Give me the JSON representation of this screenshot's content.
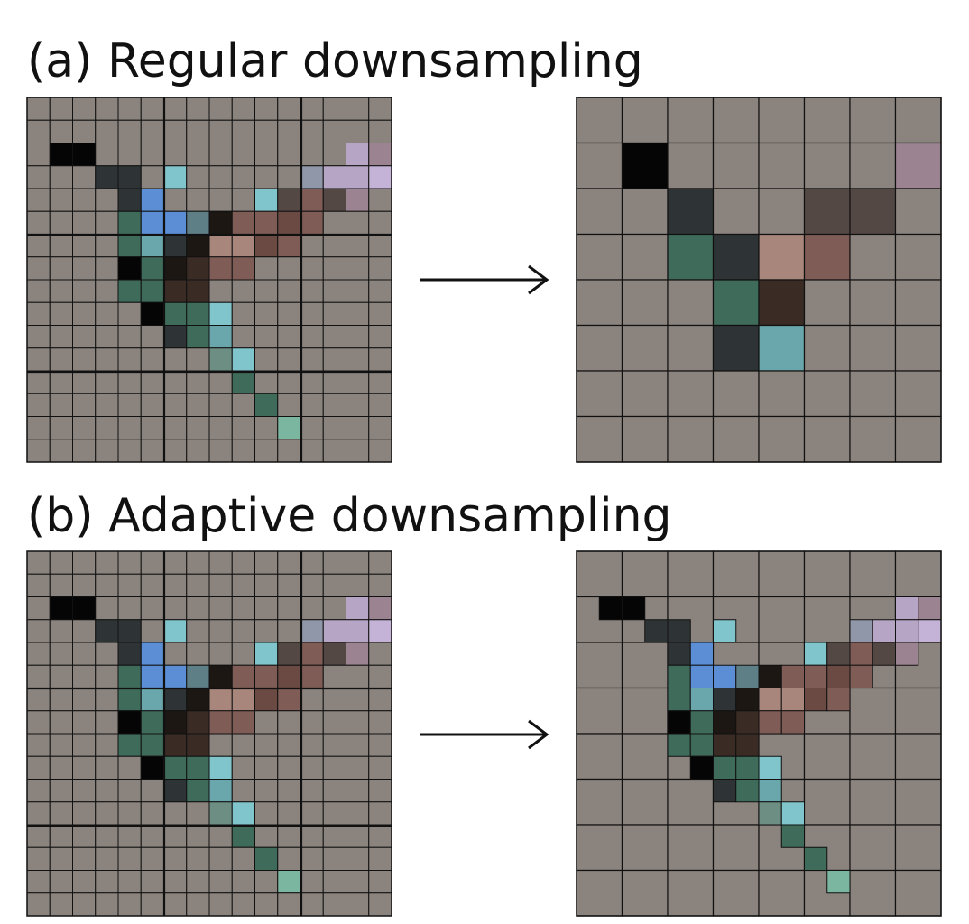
{
  "titles": {
    "regular": "(a) Regular downsampling",
    "adaptive": "(b) Adaptive downsampling"
  },
  "colors": {
    "background_cell": "#8a837e",
    "grid_line": "#111111",
    "arrow": "#111111"
  },
  "palette": {
    "K": "#050505",
    "D": "#2e3436",
    "B": "#5b8ed4",
    "C": "#80c5cb",
    "G": "#3f6b5a",
    "S": "#6aa7ac",
    "T": "#5f7f86",
    "Y": "#1c1712",
    "R": "#3a2b24",
    "P": "#a8867c",
    "M": "#7f5d56",
    "N": "#6b4a43",
    "E": "#544845",
    "L": "#c4b3d6",
    "V": "#b7a5c6",
    "O": "#9c8391",
    "Q": "#8f97a8",
    "H": "#7ab6a0",
    "W": "#6d8e82"
  },
  "diagram": {
    "fine_grid": {
      "rows": [
        "................",
        "................",
        ".KK...........VOL",
        "...DD.C.....QVVL.",
        "....DB....CEMEO..",
        "....GBBTYMMNM....",
        "....GSDYPPNM.....",
        "....KGYRMM.......",
        "....GGRR.........",
        ".....KGGC........",
        "......DGS........",
        "........WC.......",
        ".........G.......",
        "..........G......",
        "...........H.....",
        "................"
      ]
    },
    "regular_output": {
      "rows": [
        "........",
        ".K.....O",
        "..D..EE.",
        "..GDPM..",
        "...GR...",
        "...DS...",
        "........",
        "........"
      ]
    },
    "adaptive_output": {
      "rows": [
        "........",
        "........",
        ".KK...........VOL",
        "...DD.C.....QVVL.",
        "....DB....CEMEO..",
        "....GBBTYMMNM....",
        "....GSDYPPNM.....",
        "....KGYRMM.......",
        "....GGRR.........",
        ".....KGGC........",
        "......DGS........",
        "........WC.......",
        ".........G.......",
        "..........G......",
        "...........H.....",
        "........"
      ]
    }
  }
}
